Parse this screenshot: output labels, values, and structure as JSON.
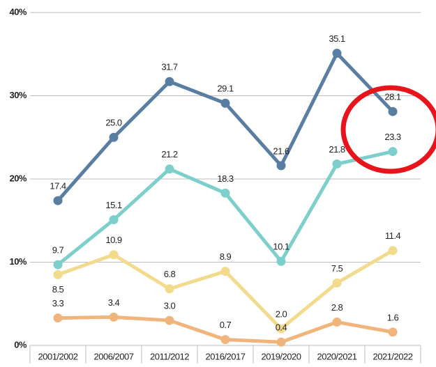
{
  "chart_data": {
    "type": "line",
    "categories": [
      "2001/2002",
      "2006/2007",
      "2011/2012",
      "2016/2017",
      "2019/2020",
      "2020/2021",
      "2021/2022"
    ],
    "series": [
      {
        "color": "#5a7ea1",
        "values": [
          17.4,
          25.0,
          31.7,
          29.1,
          21.6,
          35.1,
          28.1
        ],
        "value_labels": [
          "17.4",
          "25.0",
          "31.7",
          "29.1",
          "21.6",
          "35.1",
          "28.1"
        ]
      },
      {
        "color": "#7dcfcb",
        "values": [
          9.7,
          15.1,
          21.2,
          18.3,
          10.1,
          21.8,
          23.3
        ],
        "value_labels": [
          "9.7",
          "15.1",
          "21.2",
          "18.3",
          "10.1",
          "21.8",
          "23.3"
        ]
      },
      {
        "color": "#f3db8e",
        "values": [
          8.5,
          10.9,
          6.8,
          8.9,
          2.0,
          7.5,
          11.4
        ],
        "value_labels": [
          "8.5",
          "10.9",
          "6.8",
          "8.9",
          "2.0",
          "7.5",
          "11.4"
        ]
      },
      {
        "color": "#f0b57d",
        "values": [
          3.3,
          3.4,
          3.0,
          0.7,
          0.4,
          2.8,
          1.6
        ],
        "value_labels": [
          "3.3",
          "3.4",
          "3.0",
          "0.7",
          "0.4",
          "2.8",
          "1.6"
        ]
      }
    ],
    "ylim": [
      0,
      40
    ],
    "yticks": [
      {
        "value": 0,
        "label": "0%"
      },
      {
        "value": 10,
        "label": "10%"
      },
      {
        "value": 20,
        "label": "20%"
      },
      {
        "value": 30,
        "label": "30%"
      },
      {
        "value": 40,
        "label": "40%"
      }
    ],
    "grid": true
  }
}
